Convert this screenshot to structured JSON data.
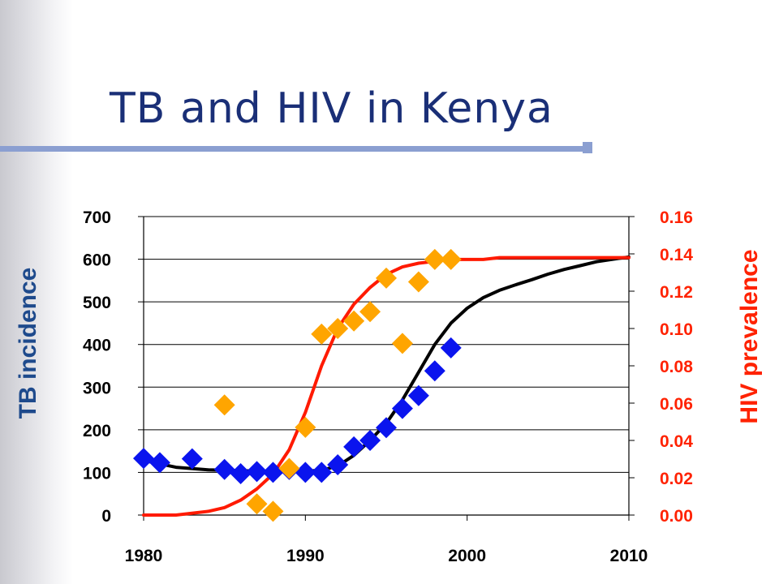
{
  "slide": {
    "title": "TB and HIV in Kenya"
  },
  "chart_data": {
    "type": "scatter",
    "title": "",
    "xlabel": "",
    "ylabel": "TB incidence",
    "y2label": "HIV prevalence",
    "xlim": [
      1980,
      2010
    ],
    "ylim": [
      0,
      700
    ],
    "y2lim": [
      0,
      0.16
    ],
    "x_ticks": [
      1980,
      1990,
      2000,
      2010
    ],
    "y_ticks": [
      0,
      100,
      200,
      300,
      400,
      500,
      600,
      700
    ],
    "y2_ticks": [
      "0.00",
      "0.02",
      "0.04",
      "0.06",
      "0.08",
      "0.10",
      "0.12",
      "0.14",
      "0.16"
    ],
    "grid": "horizontal",
    "colors": {
      "tb": "#0a14ee",
      "tb_curve": "#000000",
      "hiv": "#ffa500",
      "hiv_curve": "#ff1a00",
      "left_axis": "#1e4a8c",
      "right_axis": "#ff2200"
    },
    "series": [
      {
        "kind": "points",
        "axis": "left",
        "color": "#0a14ee",
        "x": [
          1980,
          1981,
          1983,
          1985,
          1986,
          1987,
          1988,
          1989,
          1990,
          1991,
          1992,
          1993,
          1994,
          1995,
          1996,
          1997,
          1998,
          1999
        ],
        "y": [
          133,
          123,
          132,
          107,
          97,
          102,
          100,
          107,
          100,
          100,
          118,
          160,
          175,
          205,
          250,
          280,
          338,
          392
        ]
      },
      {
        "kind": "line",
        "axis": "left",
        "color": "#000000",
        "x": [
          1980,
          1982,
          1984,
          1986,
          1988,
          1990,
          1991,
          1992,
          1993,
          1994,
          1995,
          1996,
          1997,
          1998,
          1999,
          2000,
          2001,
          2002,
          2003,
          2004,
          2005,
          2006,
          2007,
          2008,
          2009,
          2010
        ],
        "y": [
          128,
          112,
          106,
          104,
          102,
          103,
          105,
          115,
          140,
          175,
          215,
          270,
          335,
          400,
          450,
          485,
          510,
          527,
          540,
          552,
          565,
          576,
          585,
          594,
          600,
          605
        ]
      },
      {
        "kind": "points",
        "axis": "right",
        "color": "#ffa500",
        "x": [
          1985,
          1987,
          1988,
          1989,
          1990,
          1991,
          1992,
          1993,
          1994,
          1995,
          1996,
          1997,
          1998,
          1999
        ],
        "y": [
          0.059,
          0.006,
          0.002,
          0.025,
          0.047,
          0.097,
          0.1,
          0.104,
          0.109,
          0.127,
          0.092,
          0.125,
          0.137,
          0.137
        ]
      },
      {
        "kind": "line",
        "axis": "right",
        "color": "#ff1a00",
        "x": [
          1980,
          1982,
          1984,
          1985,
          1986,
          1987,
          1988,
          1989,
          1990,
          1991,
          1992,
          1993,
          1994,
          1995,
          1996,
          1997,
          1998,
          1999,
          2000,
          2001,
          2002,
          2004,
          2006,
          2008,
          2010
        ],
        "y": [
          0.0,
          0.0,
          0.002,
          0.004,
          0.008,
          0.014,
          0.022,
          0.035,
          0.055,
          0.08,
          0.1,
          0.113,
          0.122,
          0.129,
          0.133,
          0.135,
          0.136,
          0.137,
          0.137,
          0.137,
          0.138,
          0.138,
          0.138,
          0.138,
          0.138
        ]
      }
    ]
  }
}
